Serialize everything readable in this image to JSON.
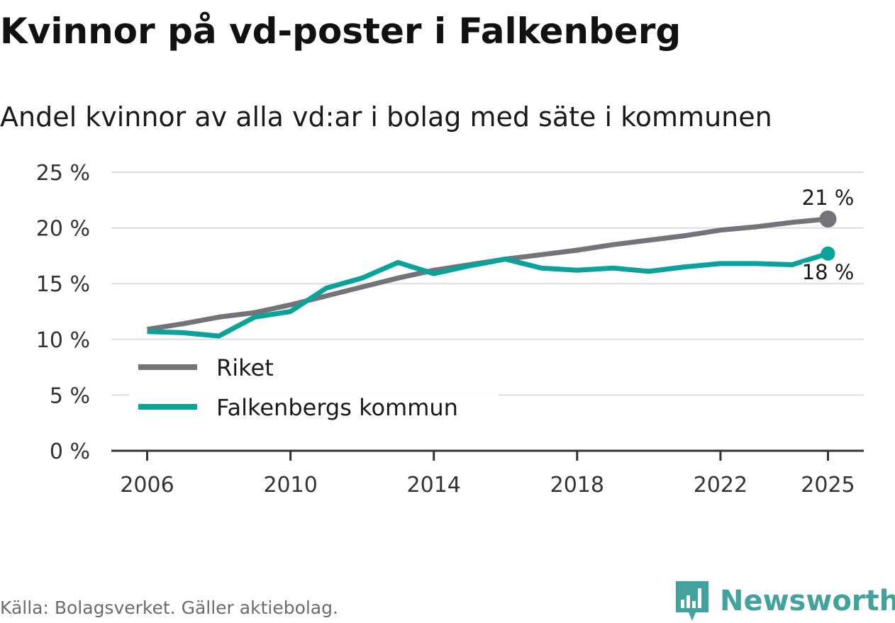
{
  "header": {
    "title": "Kvinnor på vd-poster i Falkenberg",
    "subtitle": "Andel kvinnor av alla vd:ar i bolag med säte i kommunen"
  },
  "footer": {
    "source": "Källa: Bolagsverket. Gäller aktiebolag.",
    "brand": "Newsworthy",
    "brand_icon": "newsworthy-logo-icon"
  },
  "colors": {
    "riket": "#747379",
    "falkenberg": "#0aa39a",
    "grid": "#dddddd",
    "axis": "#333333",
    "brand": "#41a39b"
  },
  "chart_data": {
    "type": "line",
    "title": "Kvinnor på vd-poster i Falkenberg",
    "subtitle": "Andel kvinnor av alla vd:ar i bolag med säte i kommunen",
    "xlabel": "",
    "ylabel": "",
    "x": [
      2006,
      2007,
      2008,
      2009,
      2010,
      2011,
      2012,
      2013,
      2014,
      2015,
      2016,
      2017,
      2018,
      2019,
      2020,
      2021,
      2022,
      2023,
      2024,
      2025
    ],
    "xticks": [
      "2006",
      "2010",
      "2014",
      "2018",
      "2022",
      "2025"
    ],
    "xtick_values": [
      2006,
      2010,
      2014,
      2018,
      2022,
      2025
    ],
    "yticks": [
      "0 %",
      "5 %",
      "10 %",
      "15 %",
      "20 %",
      "25 %"
    ],
    "ytick_values": [
      0,
      5,
      10,
      15,
      20,
      25
    ],
    "xlim": [
      2005,
      2026
    ],
    "ylim": [
      0,
      25
    ],
    "grid": true,
    "legend_position": "bottom-left",
    "series": [
      {
        "name": "Riket",
        "color": "#747379",
        "values": [
          10.9,
          11.4,
          12.0,
          12.4,
          13.1,
          13.9,
          14.7,
          15.5,
          16.2,
          16.7,
          17.2,
          17.6,
          18.0,
          18.5,
          18.9,
          19.3,
          19.8,
          20.1,
          20.5,
          20.8
        ],
        "end_label": "21 %"
      },
      {
        "name": "Falkenbergs kommun",
        "color": "#0aa39a",
        "values": [
          10.7,
          10.6,
          10.3,
          12.0,
          12.5,
          14.6,
          15.5,
          16.9,
          15.9,
          16.6,
          17.2,
          16.4,
          16.2,
          16.4,
          16.1,
          16.5,
          16.8,
          16.8,
          16.7,
          17.7
        ],
        "end_label": "18 %"
      }
    ]
  }
}
